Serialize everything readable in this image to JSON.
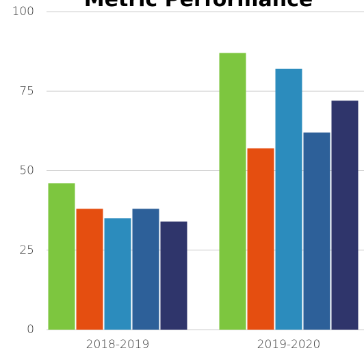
{
  "chart_data": {
    "type": "bar",
    "title": "Metric Performance",
    "categories": [
      "2018-2019",
      "2019-2020"
    ],
    "series": [
      {
        "color": "#7dc63f",
        "values": [
          46,
          87
        ]
      },
      {
        "color": "#e54e10",
        "values": [
          38,
          57
        ]
      },
      {
        "color": "#2c8cbd",
        "values": [
          35,
          82
        ]
      },
      {
        "color": "#2d6099",
        "values": [
          38,
          62
        ]
      },
      {
        "color": "#2f356b",
        "values": [
          34,
          72
        ]
      }
    ],
    "ylim": [
      0,
      100
    ],
    "yticks": [
      0,
      25,
      50,
      75,
      100
    ],
    "grid": true
  }
}
